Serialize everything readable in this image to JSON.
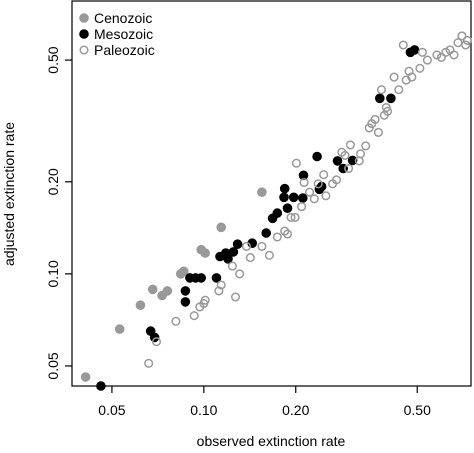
{
  "chart_data": {
    "type": "scatter",
    "xlabel": "observed extinction rate",
    "ylabel": "adjusted extinction rate",
    "x_scale": "log",
    "y_scale": "log",
    "xlim": [
      0.037,
      0.75
    ],
    "ylim": [
      0.043,
      0.78
    ],
    "x_ticks": [
      0.05,
      0.1,
      0.2,
      0.5
    ],
    "x_tick_labels": [
      "0.05",
      "0.10",
      "0.20",
      "0.50"
    ],
    "y_ticks": [
      0.05,
      0.1,
      0.2,
      0.5
    ],
    "y_tick_labels": [
      "0.05",
      "0.10",
      "0.20",
      "0.50"
    ],
    "grid": false,
    "legend_position": "top-left",
    "series": [
      {
        "name": "Cenozoic",
        "marker": "filled-circle",
        "color": "#999999",
        "points": [
          [
            0.041,
            0.046
          ],
          [
            0.053,
            0.066
          ],
          [
            0.062,
            0.079
          ],
          [
            0.068,
            0.089
          ],
          [
            0.073,
            0.085
          ],
          [
            0.076,
            0.088
          ],
          [
            0.084,
            0.1
          ],
          [
            0.086,
            0.102
          ],
          [
            0.098,
            0.12
          ],
          [
            0.101,
            0.117
          ],
          [
            0.114,
            0.142
          ],
          [
            0.155,
            0.185
          ]
        ]
      },
      {
        "name": "Mesozoic",
        "marker": "filled-circle",
        "color": "#000000",
        "points": [
          [
            0.046,
            0.043
          ],
          [
            0.067,
            0.065
          ],
          [
            0.069,
            0.062
          ],
          [
            0.087,
            0.081
          ],
          [
            0.087,
            0.088
          ],
          [
            0.09,
            0.097
          ],
          [
            0.094,
            0.097
          ],
          [
            0.098,
            0.097
          ],
          [
            0.11,
            0.097
          ],
          [
            0.113,
            0.114
          ],
          [
            0.118,
            0.117
          ],
          [
            0.12,
            0.112
          ],
          [
            0.125,
            0.118
          ],
          [
            0.129,
            0.125
          ],
          [
            0.144,
            0.126
          ],
          [
            0.16,
            0.136
          ],
          [
            0.168,
            0.152
          ],
          [
            0.174,
            0.158
          ],
          [
            0.183,
            0.178
          ],
          [
            0.184,
            0.19
          ],
          [
            0.188,
            0.164
          ],
          [
            0.197,
            0.178
          ],
          [
            0.211,
            0.177
          ],
          [
            0.212,
            0.21
          ],
          [
            0.235,
            0.242
          ],
          [
            0.239,
            0.189
          ],
          [
            0.243,
            0.193
          ],
          [
            0.274,
            0.234
          ],
          [
            0.286,
            0.221
          ],
          [
            0.307,
            0.235
          ],
          [
            0.377,
            0.375
          ],
          [
            0.41,
            0.375
          ],
          [
            0.475,
            0.53
          ],
          [
            0.49,
            0.54
          ]
        ]
      },
      {
        "name": "Paleozoic",
        "marker": "open-circle",
        "color": "#999999",
        "points": [
          [
            0.066,
            0.051
          ],
          [
            0.07,
            0.06
          ],
          [
            0.081,
            0.07
          ],
          [
            0.093,
            0.073
          ],
          [
            0.097,
            0.078
          ],
          [
            0.1,
            0.08
          ],
          [
            0.101,
            0.082
          ],
          [
            0.112,
            0.088
          ],
          [
            0.114,
            0.092
          ],
          [
            0.124,
            0.106
          ],
          [
            0.127,
            0.084
          ],
          [
            0.131,
            0.1
          ],
          [
            0.138,
            0.123
          ],
          [
            0.142,
            0.113
          ],
          [
            0.155,
            0.123
          ],
          [
            0.164,
            0.115
          ],
          [
            0.174,
            0.132
          ],
          [
            0.184,
            0.138
          ],
          [
            0.188,
            0.135
          ],
          [
            0.193,
            0.153
          ],
          [
            0.199,
            0.153
          ],
          [
            0.201,
            0.23
          ],
          [
            0.209,
            0.166
          ],
          [
            0.213,
            0.199
          ],
          [
            0.222,
            0.185
          ],
          [
            0.23,
            0.176
          ],
          [
            0.237,
            0.197
          ],
          [
            0.247,
            0.211
          ],
          [
            0.251,
            0.18
          ],
          [
            0.264,
            0.197
          ],
          [
            0.272,
            0.203
          ],
          [
            0.283,
            0.25
          ],
          [
            0.29,
            0.244
          ],
          [
            0.298,
            0.221
          ],
          [
            0.302,
            0.264
          ],
          [
            0.323,
            0.234
          ],
          [
            0.326,
            0.247
          ],
          [
            0.339,
            0.262
          ],
          [
            0.348,
            0.3
          ],
          [
            0.355,
            0.31
          ],
          [
            0.364,
            0.32
          ],
          [
            0.373,
            0.29
          ],
          [
            0.382,
            0.4
          ],
          [
            0.39,
            0.33
          ],
          [
            0.396,
            0.35
          ],
          [
            0.4,
            0.34
          ],
          [
            0.42,
            0.44
          ],
          [
            0.435,
            0.4
          ],
          [
            0.45,
            0.56
          ],
          [
            0.46,
            0.43
          ],
          [
            0.47,
            0.46
          ],
          [
            0.48,
            0.44
          ],
          [
            0.51,
            0.47
          ],
          [
            0.52,
            0.53
          ],
          [
            0.54,
            0.5
          ],
          [
            0.58,
            0.52
          ],
          [
            0.6,
            0.51
          ],
          [
            0.62,
            0.53
          ],
          [
            0.64,
            0.54
          ],
          [
            0.66,
            0.52
          ],
          [
            0.68,
            0.57
          ],
          [
            0.7,
            0.6
          ],
          [
            0.72,
            0.56
          ],
          [
            0.73,
            0.58
          ]
        ]
      }
    ]
  }
}
